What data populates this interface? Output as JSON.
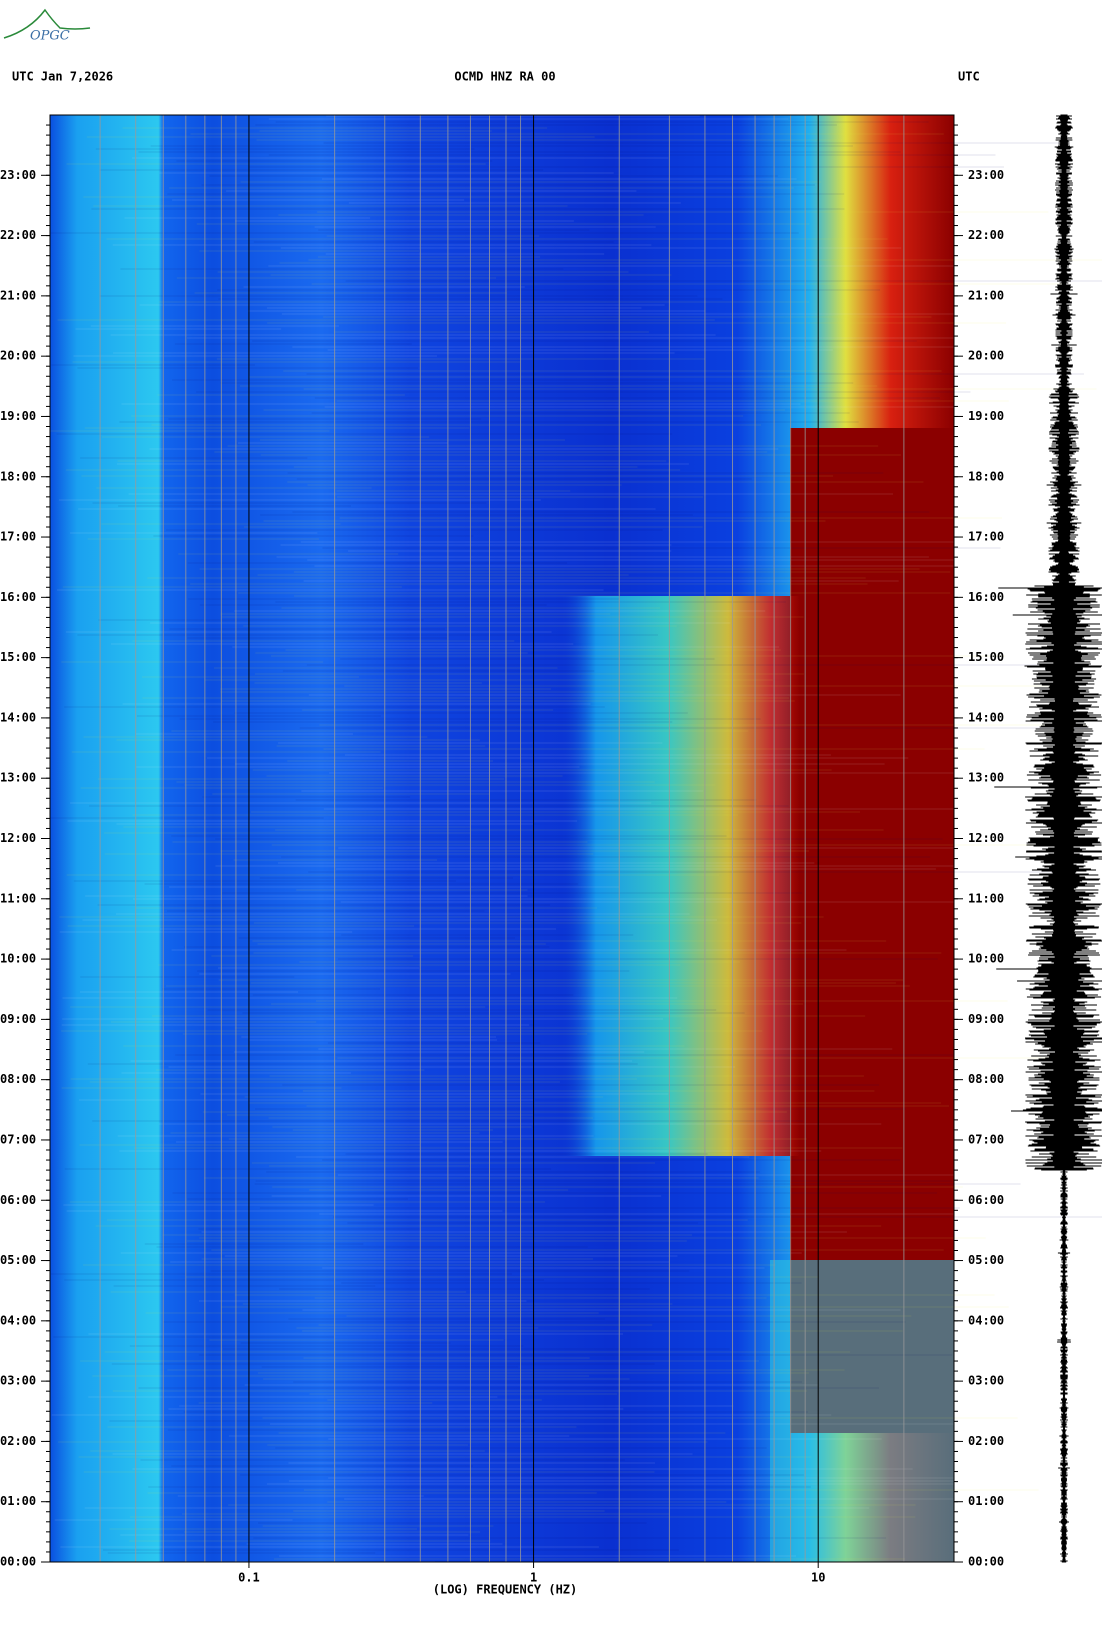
{
  "chart_data": {
    "type": "spectrogram",
    "logo": "OPGC",
    "header_left": "UTC  Jan 7,2026",
    "title": "OCMD HNZ RA 00",
    "header_right": "UTC",
    "xlabel": "(LOG) FREQUENCY (HZ)",
    "x_scale": "log",
    "xlim": [
      0.02,
      30
    ],
    "xticks": [
      0.1,
      1,
      10
    ],
    "ylim": [
      0,
      24
    ],
    "yticks": [
      {
        "value": 0,
        "label": "00:00"
      },
      {
        "value": 1,
        "label": "01:00"
      },
      {
        "value": 2,
        "label": "02:00"
      },
      {
        "value": 3,
        "label": "03:00"
      },
      {
        "value": 4,
        "label": "04:00"
      },
      {
        "value": 5,
        "label": "05:00"
      },
      {
        "value": 6,
        "label": "06:00"
      },
      {
        "value": 7,
        "label": "07:00"
      },
      {
        "value": 8,
        "label": "08:00"
      },
      {
        "value": 9,
        "label": "09:00"
      },
      {
        "value": 10,
        "label": "10:00"
      },
      {
        "value": 11,
        "label": "11:00"
      },
      {
        "value": 12,
        "label": "12:00"
      },
      {
        "value": 13,
        "label": "13:00"
      },
      {
        "value": 14,
        "label": "14:00"
      },
      {
        "value": 15,
        "label": "15:00"
      },
      {
        "value": 16,
        "label": "16:00"
      },
      {
        "value": 17,
        "label": "17:00"
      },
      {
        "value": 18,
        "label": "18:00"
      },
      {
        "value": 19,
        "label": "19:00"
      },
      {
        "value": 20,
        "label": "20:00"
      },
      {
        "value": 21,
        "label": "21:00"
      },
      {
        "value": 22,
        "label": "22:00"
      },
      {
        "value": 23,
        "label": "23:00"
      }
    ]
  }
}
